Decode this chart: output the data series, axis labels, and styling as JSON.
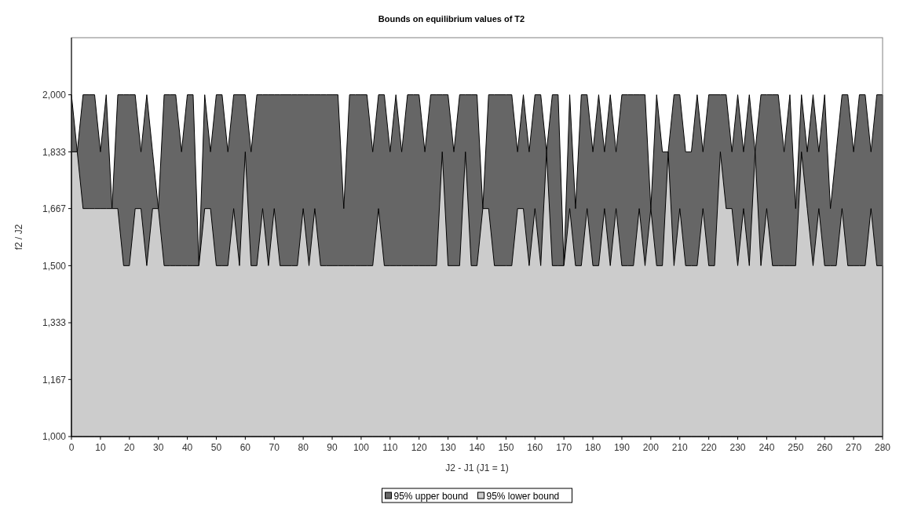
{
  "chart_data": {
    "type": "area",
    "title": "Bounds on equilibrium values of T2",
    "xlabel": "J2 - J1 (J1 = 1)",
    "ylabel": "f2 / J2",
    "x": [
      0,
      2,
      4,
      6,
      8,
      10,
      12,
      14,
      16,
      18,
      20,
      22,
      24,
      26,
      28,
      30,
      32,
      34,
      36,
      38,
      40,
      42,
      44,
      46,
      48,
      50,
      52,
      54,
      56,
      58,
      60,
      62,
      64,
      66,
      68,
      70,
      72,
      74,
      76,
      78,
      80,
      82,
      84,
      86,
      88,
      90,
      92,
      94,
      96,
      98,
      100,
      102,
      104,
      106,
      108,
      110,
      112,
      114,
      116,
      118,
      120,
      122,
      124,
      126,
      128,
      130,
      132,
      134,
      136,
      138,
      140,
      142,
      144,
      146,
      148,
      150,
      152,
      154,
      156,
      158,
      160,
      162,
      164,
      166,
      168,
      170,
      172,
      174,
      176,
      178,
      180,
      182,
      184,
      186,
      188,
      190,
      192,
      194,
      196,
      198,
      200,
      202,
      204,
      206,
      208,
      210,
      212,
      214,
      216,
      218,
      220,
      222,
      224,
      226,
      228,
      230,
      232,
      234,
      236,
      238,
      240,
      242,
      244,
      246,
      248,
      250,
      252,
      254,
      256,
      258,
      260,
      262,
      264,
      266,
      268,
      270,
      272,
      274,
      276,
      278,
      280
    ],
    "series": [
      {
        "name": "95% upper bound",
        "color": "#666666",
        "values": [
          2000,
          1833,
          2000,
          2000,
          2000,
          1833,
          2000,
          1667,
          2000,
          2000,
          2000,
          2000,
          1833,
          2000,
          1833,
          1667,
          2000,
          2000,
          2000,
          1833,
          2000,
          2000,
          1500,
          2000,
          1833,
          2000,
          2000,
          1833,
          2000,
          2000,
          2000,
          1833,
          2000,
          2000,
          2000,
          2000,
          2000,
          2000,
          2000,
          2000,
          2000,
          2000,
          2000,
          2000,
          2000,
          2000,
          2000,
          1667,
          2000,
          2000,
          2000,
          2000,
          1833,
          2000,
          2000,
          1833,
          2000,
          1833,
          2000,
          2000,
          2000,
          1833,
          2000,
          2000,
          2000,
          2000,
          1833,
          2000,
          2000,
          2000,
          2000,
          1667,
          2000,
          2000,
          2000,
          2000,
          2000,
          1833,
          2000,
          1833,
          2000,
          2000,
          1833,
          2000,
          2000,
          1500,
          2000,
          1667,
          2000,
          2000,
          1833,
          2000,
          1833,
          2000,
          1833,
          2000,
          2000,
          2000,
          2000,
          2000,
          1667,
          2000,
          1833,
          1833,
          2000,
          2000,
          1833,
          1833,
          2000,
          1833,
          2000,
          2000,
          2000,
          2000,
          1833,
          2000,
          1833,
          2000,
          1833,
          2000,
          2000,
          2000,
          2000,
          1833,
          2000,
          1667,
          2000,
          1833,
          2000,
          1833,
          2000,
          1667,
          1833,
          2000,
          2000,
          1833,
          2000,
          2000,
          1833,
          2000,
          2000
        ]
      },
      {
        "name": "95% lower bound",
        "color": "#cccccc",
        "values": [
          1833,
          1833,
          1667,
          1667,
          1667,
          1667,
          1667,
          1667,
          1667,
          1500,
          1500,
          1667,
          1667,
          1500,
          1667,
          1667,
          1500,
          1500,
          1500,
          1500,
          1500,
          1500,
          1500,
          1667,
          1667,
          1500,
          1500,
          1500,
          1667,
          1500,
          1833,
          1500,
          1500,
          1667,
          1500,
          1667,
          1500,
          1500,
          1500,
          1500,
          1667,
          1500,
          1667,
          1500,
          1500,
          1500,
          1500,
          1500,
          1500,
          1500,
          1500,
          1500,
          1500,
          1667,
          1500,
          1500,
          1500,
          1500,
          1500,
          1500,
          1500,
          1500,
          1500,
          1500,
          1833,
          1500,
          1500,
          1500,
          1833,
          1500,
          1500,
          1667,
          1667,
          1500,
          1500,
          1500,
          1500,
          1667,
          1667,
          1500,
          1667,
          1500,
          1833,
          1500,
          1500,
          1500,
          1667,
          1500,
          1500,
          1667,
          1500,
          1500,
          1667,
          1500,
          1667,
          1500,
          1500,
          1500,
          1667,
          1500,
          1667,
          1500,
          1500,
          1833,
          1500,
          1667,
          1500,
          1500,
          1500,
          1667,
          1500,
          1500,
          1833,
          1667,
          1667,
          1500,
          1667,
          1500,
          1833,
          1500,
          1667,
          1500,
          1500,
          1500,
          1500,
          1500,
          1833,
          1667,
          1500,
          1667,
          1500,
          1500,
          1500,
          1667,
          1500,
          1500,
          1500,
          1500,
          1667,
          1500,
          1500
        ]
      }
    ],
    "xlim": [
      0,
      280
    ],
    "xticks": [
      0,
      10,
      20,
      30,
      40,
      50,
      60,
      70,
      80,
      90,
      100,
      110,
      120,
      130,
      140,
      150,
      160,
      170,
      180,
      190,
      200,
      210,
      220,
      230,
      240,
      250,
      260,
      270,
      280
    ],
    "ylim": [
      1000,
      2167
    ],
    "yticks": [
      {
        "value": 1000,
        "label": "1,000"
      },
      {
        "value": 1167,
        "label": "1,167"
      },
      {
        "value": 1333,
        "label": "1,333"
      },
      {
        "value": 1500,
        "label": "1,500"
      },
      {
        "value": 1667,
        "label": "1,667"
      },
      {
        "value": 1833,
        "label": "1,833"
      },
      {
        "value": 2000,
        "label": "2,000"
      }
    ],
    "grid": false,
    "legend": "bottom"
  }
}
